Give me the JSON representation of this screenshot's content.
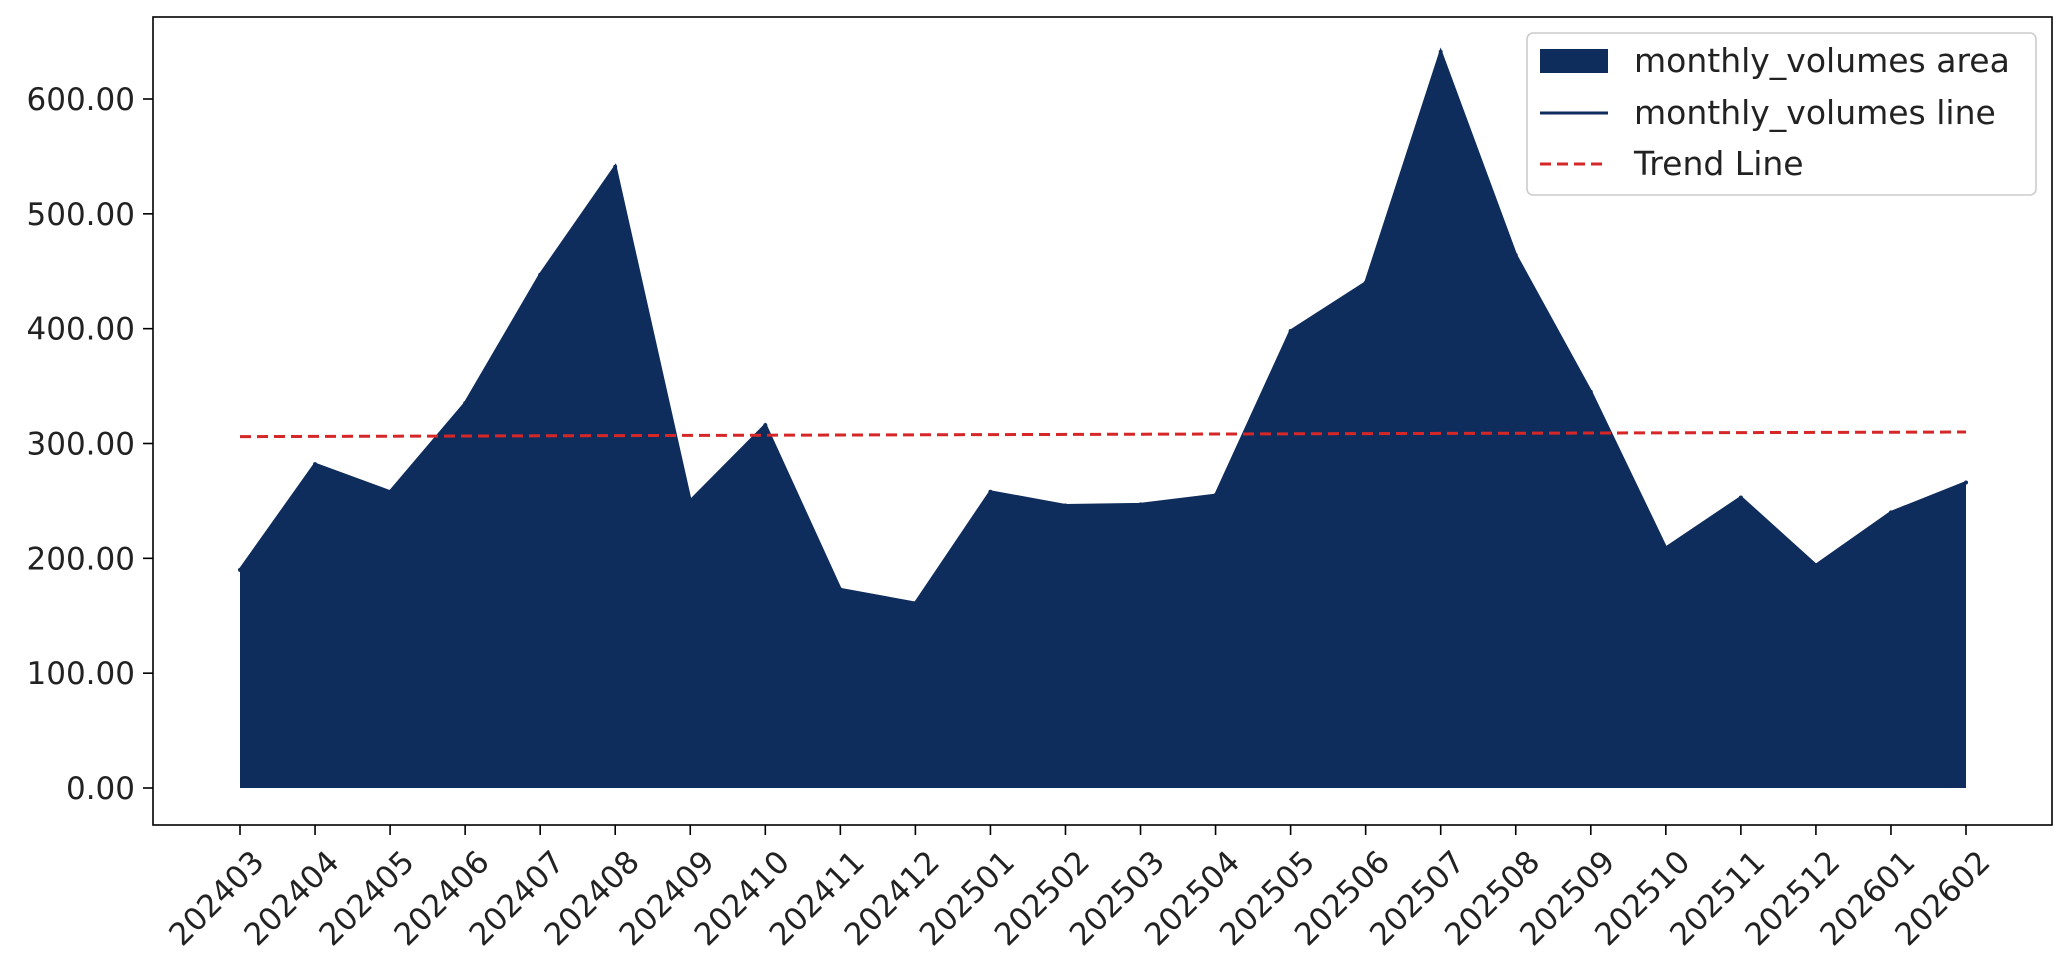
{
  "chart_data": {
    "type": "area",
    "title": "",
    "xlabel": "",
    "ylabel": "",
    "categories": [
      "202403",
      "202404",
      "202405",
      "202406",
      "202407",
      "202408",
      "202409",
      "202410",
      "202411",
      "202412",
      "202501",
      "202502",
      "202503",
      "202504",
      "202505",
      "202506",
      "202507",
      "202508",
      "202509",
      "202510",
      "202511",
      "202512",
      "202601",
      "202602"
    ],
    "series": [
      {
        "name": "monthly_volumes area",
        "values": [
          190,
          282,
          258,
          335,
          447,
          541,
          250,
          316,
          173,
          161,
          258,
          246,
          247,
          255,
          398,
          440,
          641,
          464,
          345,
          209,
          253,
          194,
          240,
          266
        ],
        "color": "#0f2d5c"
      }
    ],
    "trend": {
      "name": "Trend Line",
      "start": 306,
      "end": 310,
      "color": "#d62728"
    },
    "ylim": [
      -30,
      672
    ],
    "yticks": [
      0,
      100,
      200,
      300,
      400,
      500,
      600
    ],
    "ytick_labels": [
      "0.00",
      "100.00",
      "200.00",
      "300.00",
      "400.00",
      "500.00",
      "600.00"
    ],
    "grid": false,
    "legend": {
      "position": "top-right",
      "entries": [
        {
          "label": "monthly_volumes area",
          "kind": "patch",
          "color": "#0f2d5c"
        },
        {
          "label": "monthly_volumes line",
          "kind": "line",
          "color": "#0f2d5c"
        },
        {
          "label": "Trend Line",
          "kind": "dashed",
          "color": "#d62728"
        }
      ]
    }
  }
}
